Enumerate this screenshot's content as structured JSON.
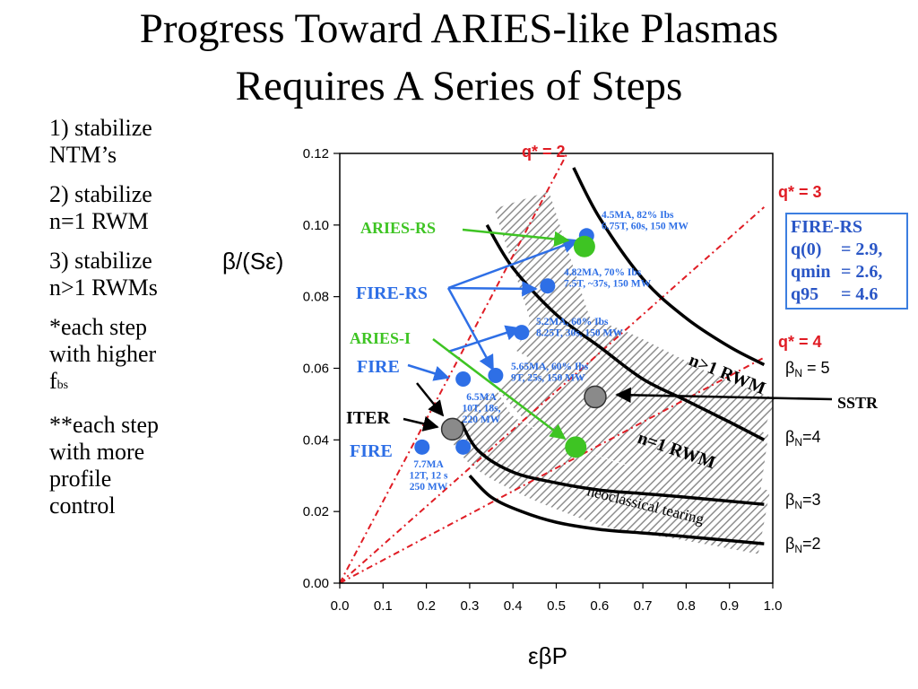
{
  "slide": {
    "title_line1": "Progress Toward ARIES-like Plasmas",
    "title_line2": "Requires A Series of Steps",
    "steps": [
      {
        "line1": "1) stabilize",
        "line2": "NTM’s"
      },
      {
        "line1": "2) stabilize",
        "line2": "n=1 RWM"
      },
      {
        "line1": "3) stabilize",
        "line2": "n>1 RWMs"
      }
    ],
    "note1": {
      "line1": "*each step",
      "line2": "with higher",
      "prefix": "f",
      "sub": "bs"
    },
    "note2": {
      "line1": "**each step",
      "line2": "with more",
      "line3": "profile",
      "line4": "control"
    }
  },
  "fire_rs_box": {
    "title": "FIRE-RS",
    "rows": [
      {
        "k": "q(0)",
        "v": "= 2.9,"
      },
      {
        "k": "qmin",
        "v": "= 2.6,"
      },
      {
        "k": "q95",
        "v": "= 4.6"
      }
    ]
  },
  "chart_data": {
    "type": "scatter",
    "xlabel": "εβP",
    "ylabel": "β/(Sε)",
    "xlim": [
      0.0,
      1.0
    ],
    "ylim": [
      0.0,
      0.12
    ],
    "xticks": [
      "0.0",
      "0.1",
      "0.2",
      "0.3",
      "0.4",
      "0.5",
      "0.6",
      "0.7",
      "0.8",
      "0.9",
      "1.0"
    ],
    "yticks": [
      "0.00",
      "0.02",
      "0.04",
      "0.06",
      "0.08",
      "0.10",
      "0.12"
    ],
    "grid": false,
    "colors": {
      "blue": "#2e6fe6",
      "green": "#3ec423",
      "gray": "#8a8a8a",
      "red": "#e01c24",
      "black": "#000000",
      "hatch": "#9a9a9a"
    },
    "beta_N_curves": [
      {
        "label": "βN = 5",
        "label_main": "β",
        "label_sub": "N",
        "label_suffix": " = 5",
        "points": [
          [
            0.54,
            0.116
          ],
          [
            0.6,
            0.102
          ],
          [
            0.7,
            0.085
          ],
          [
            0.8,
            0.074
          ],
          [
            0.9,
            0.066
          ],
          [
            0.98,
            0.061
          ]
        ]
      },
      {
        "label": "βN=4",
        "label_main": "β",
        "label_sub": "N",
        "label_suffix": "=4",
        "points": [
          [
            0.34,
            0.1
          ],
          [
            0.4,
            0.088
          ],
          [
            0.5,
            0.075
          ],
          [
            0.6,
            0.066
          ],
          [
            0.7,
            0.057
          ],
          [
            0.8,
            0.051
          ],
          [
            0.9,
            0.045
          ],
          [
            0.98,
            0.04
          ]
        ]
      },
      {
        "label": "βN=3",
        "label_main": "β",
        "label_sub": "N",
        "label_suffix": "=3",
        "points": [
          [
            0.28,
            0.045
          ],
          [
            0.32,
            0.037
          ],
          [
            0.4,
            0.031
          ],
          [
            0.5,
            0.028
          ],
          [
            0.6,
            0.026
          ],
          [
            0.7,
            0.025
          ],
          [
            0.8,
            0.024
          ],
          [
            0.98,
            0.022
          ]
        ]
      },
      {
        "label": "βN=2",
        "label_main": "β",
        "label_sub": "N",
        "label_suffix": "=2",
        "points": [
          [
            0.3,
            0.03
          ],
          [
            0.35,
            0.024
          ],
          [
            0.42,
            0.02
          ],
          [
            0.5,
            0.017
          ],
          [
            0.6,
            0.015
          ],
          [
            0.7,
            0.014
          ],
          [
            0.8,
            0.013
          ],
          [
            0.98,
            0.011
          ]
        ]
      }
    ],
    "q_star_lines": [
      {
        "label": "q* = 2",
        "x1": 0.525,
        "y1": 0.12
      },
      {
        "label": "q* = 3",
        "x1": 0.98,
        "y1": 0.105
      },
      {
        "label": "q* = 4",
        "x1": 0.98,
        "y1": 0.063
      }
    ],
    "stability_bands": [
      {
        "label": "n>1 RWM",
        "points": [
          [
            0.44,
            0.073
          ],
          [
            0.55,
            0.066
          ],
          [
            0.65,
            0.061
          ],
          [
            0.75,
            0.055
          ],
          [
            0.85,
            0.049
          ],
          [
            0.98,
            0.043
          ]
        ],
        "width": 0.009
      },
      {
        "label": "n=1 RWM",
        "points": [
          [
            0.42,
            0.06
          ],
          [
            0.5,
            0.05
          ],
          [
            0.6,
            0.045
          ],
          [
            0.7,
            0.041
          ],
          [
            0.8,
            0.036
          ],
          [
            0.98,
            0.033
          ]
        ],
        "width": 0.009
      },
      {
        "label": "neoclassical tearing",
        "points": [
          [
            0.3,
            0.049
          ],
          [
            0.35,
            0.04
          ],
          [
            0.45,
            0.033
          ],
          [
            0.55,
            0.028
          ],
          [
            0.65,
            0.024
          ],
          [
            0.8,
            0.021
          ],
          [
            0.98,
            0.017
          ]
        ],
        "width": 0.009
      },
      {
        "label": "",
        "points": [
          [
            0.42,
            0.107
          ],
          [
            0.46,
            0.092
          ],
          [
            0.5,
            0.077
          ],
          [
            0.53,
            0.066
          ]
        ],
        "width": 0.008
      }
    ],
    "series": [
      {
        "name": "FIRE / FIRE-RS",
        "color": "blue",
        "points": [
          {
            "x": 0.57,
            "y": 0.097,
            "labels": [
              "4.5MA, 82% Ibs",
              "6.75T, 60s, 150 MW"
            ]
          },
          {
            "x": 0.48,
            "y": 0.083,
            "labels": [
              "4.82MA, 70% Ibs",
              "7.5T, ~37s, 150 MW"
            ]
          },
          {
            "x": 0.42,
            "y": 0.07,
            "labels": [
              "5.2MA, 60% Ibs",
              "8.25T, 30s, 150 MW"
            ]
          },
          {
            "x": 0.36,
            "y": 0.058,
            "labels": [
              "5.65MA, 60% Ibs",
              "9T, 25s, 150 MW"
            ]
          },
          {
            "x": 0.285,
            "y": 0.057,
            "labels": [
              "6.5MA",
              "10T, 18s,",
              "220 MW"
            ]
          },
          {
            "x": 0.19,
            "y": 0.038,
            "labels": [
              "7.7MA",
              "12T, 12 s",
              "250 MW"
            ]
          },
          {
            "x": 0.285,
            "y": 0.038,
            "labels": []
          }
        ]
      },
      {
        "name": "ARIES",
        "color": "green",
        "points": [
          {
            "x": 0.565,
            "y": 0.094,
            "labels": []
          },
          {
            "x": 0.545,
            "y": 0.038,
            "labels": []
          }
        ]
      },
      {
        "name": "ITER / SSTR",
        "color": "gray",
        "points": [
          {
            "x": 0.26,
            "y": 0.043,
            "labels": []
          },
          {
            "x": 0.59,
            "y": 0.052,
            "labels": []
          }
        ]
      }
    ],
    "annotations": [
      {
        "text": "ARIES-RS",
        "color": "green"
      },
      {
        "text": "FIRE-RS",
        "color": "blue"
      },
      {
        "text": "ARIES-I",
        "color": "green"
      },
      {
        "text": "FIRE",
        "color": "blue"
      },
      {
        "text": "ITER",
        "color": "black"
      },
      {
        "text": "FIRE",
        "color": "blue"
      },
      {
        "text": "SSTR",
        "color": "black"
      }
    ]
  }
}
